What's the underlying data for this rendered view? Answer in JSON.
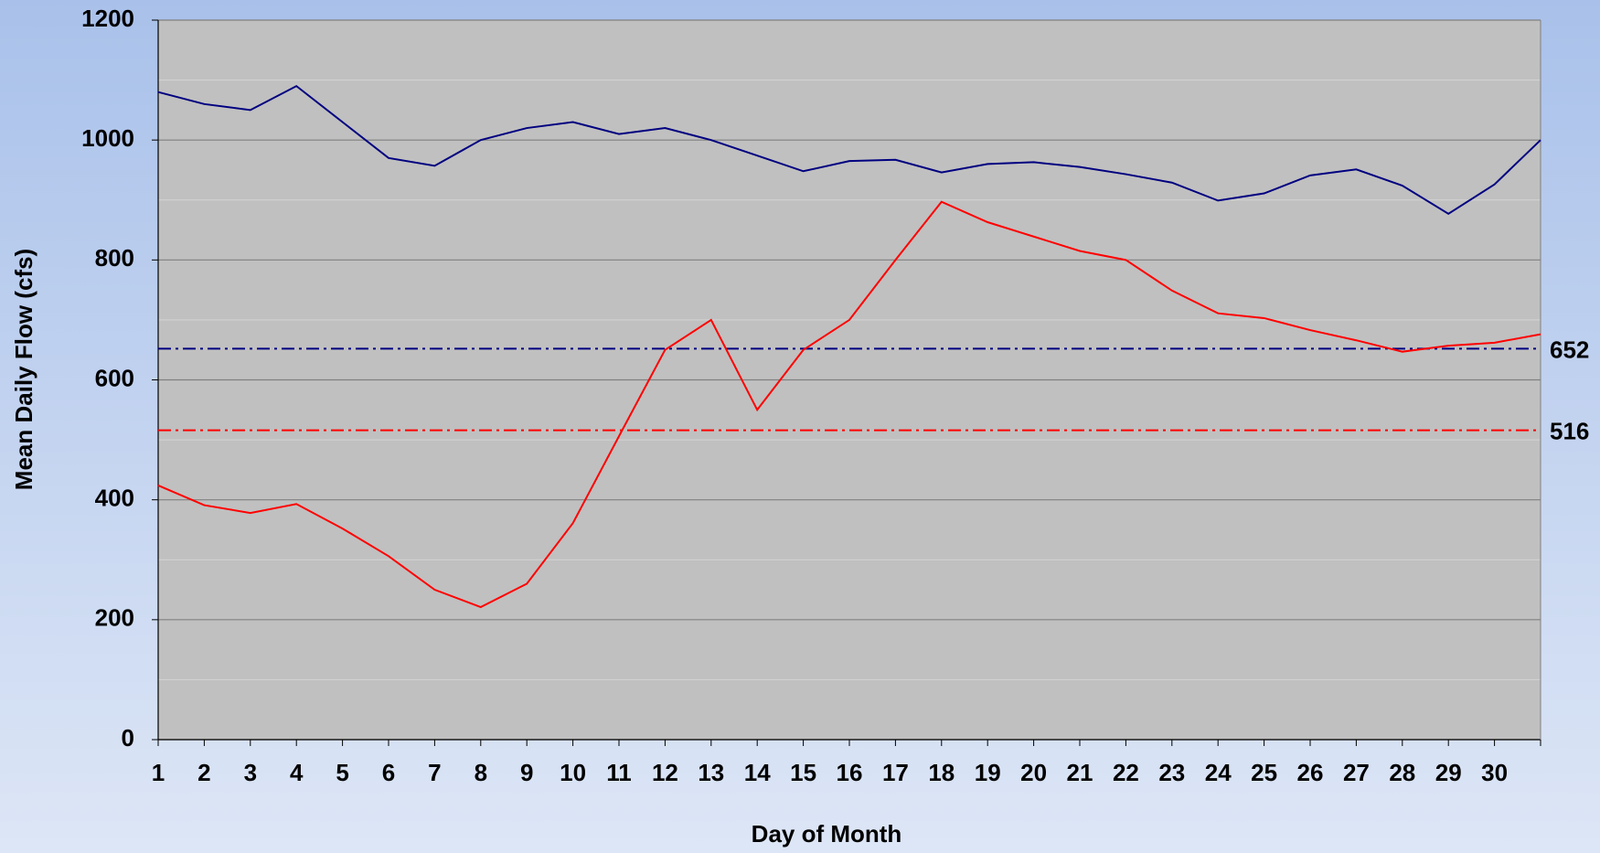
{
  "chart_data": {
    "type": "line",
    "xlabel": "Day of Month",
    "ylabel": "Mean Daily Flow (cfs)",
    "categories": [
      "1",
      "2",
      "3",
      "4",
      "5",
      "6",
      "7",
      "8",
      "9",
      "10",
      "11",
      "12",
      "13",
      "14",
      "15",
      "16",
      "17",
      "18",
      "19",
      "20",
      "21",
      "22",
      "23",
      "24",
      "25",
      "26",
      "27",
      "28",
      "29",
      "30",
      null
    ],
    "series": [
      {
        "color": "#000080",
        "values": [
          1080,
          1060,
          1050,
          1090,
          1030,
          970,
          957,
          1000,
          1020,
          1030,
          1010,
          1020,
          1000,
          974,
          948,
          965,
          967,
          946,
          960,
          963,
          955,
          943,
          929,
          899,
          911,
          941,
          951,
          924,
          877,
          926,
          1000
        ]
      },
      {
        "color": "#ff0000",
        "values": [
          424,
          391,
          378,
          393,
          352,
          306,
          250,
          221,
          260,
          361,
          506,
          650,
          700,
          550,
          650,
          700,
          800,
          897,
          863,
          839,
          815,
          800,
          749,
          711,
          703,
          683,
          666,
          647,
          657,
          662,
          676
        ]
      }
    ],
    "reference_lines": [
      {
        "value": 652,
        "color": "#000080"
      },
      {
        "value": 516,
        "color": "#ff0000"
      }
    ],
    "ylim": [
      0,
      1200
    ],
    "yticks": [
      0,
      200,
      400,
      600,
      800,
      1000,
      1200
    ],
    "minor_yticks": [
      100,
      300,
      500,
      700,
      900,
      1100
    ],
    "grid": true
  }
}
